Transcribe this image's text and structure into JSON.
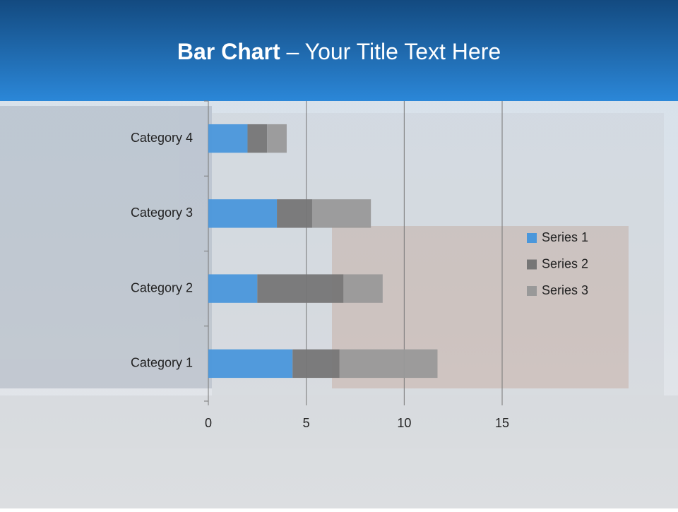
{
  "chart_data": {
    "type": "stacked-barh",
    "title": [
      "Bar Chart",
      "– Your Title Text Here"
    ],
    "categories": [
      "Category 1",
      "Category 2",
      "Category 3",
      "Category 4"
    ],
    "series": [
      {
        "name": "Series 1",
        "color": "#4a97db",
        "values": [
          4.3,
          2.5,
          3.5,
          2
        ]
      },
      {
        "name": "Series 2",
        "color": "#767676",
        "values": [
          2.4,
          4.4,
          1.8,
          1
        ]
      },
      {
        "name": "Series 3",
        "color": "#999999",
        "values": [
          5,
          2,
          3,
          1
        ]
      }
    ],
    "xlim": [
      0,
      15
    ],
    "xticks": [
      0,
      5,
      10,
      15
    ],
    "grid": true,
    "legend": "right"
  }
}
